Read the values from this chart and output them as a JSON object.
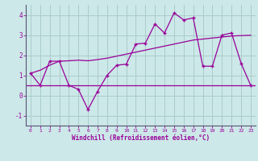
{
  "xlabel": "Windchill (Refroidissement éolien,°C)",
  "bg_color": "#cce8e8",
  "grid_color": "#aacccc",
  "line_color": "#990099",
  "hours": [
    0,
    1,
    2,
    3,
    4,
    5,
    6,
    7,
    8,
    9,
    10,
    11,
    12,
    13,
    14,
    15,
    16,
    17,
    18,
    19,
    20,
    21,
    22,
    23
  ],
  "windchill": [
    1.1,
    0.5,
    1.7,
    1.7,
    0.5,
    0.3,
    -0.7,
    0.2,
    1.0,
    1.5,
    1.55,
    2.55,
    2.6,
    3.55,
    3.1,
    4.1,
    3.75,
    3.85,
    1.45,
    1.45,
    3.0,
    3.1,
    1.6,
    0.5
  ],
  "trend": [
    1.1,
    1.25,
    1.5,
    1.7,
    1.72,
    1.75,
    1.72,
    1.78,
    1.85,
    1.95,
    2.05,
    2.15,
    2.25,
    2.35,
    2.45,
    2.55,
    2.65,
    2.75,
    2.8,
    2.85,
    2.9,
    2.95,
    2.97,
    2.99
  ],
  "flat_line": 0.5,
  "ylim": [
    -1.5,
    4.5
  ],
  "xlim": [
    -0.5,
    23.5
  ],
  "yticks": [
    -1,
    0,
    1,
    2,
    3,
    4
  ],
  "xticks": [
    0,
    1,
    2,
    3,
    4,
    5,
    6,
    7,
    8,
    9,
    10,
    11,
    12,
    13,
    14,
    15,
    16,
    17,
    18,
    19,
    20,
    21,
    22,
    23
  ]
}
